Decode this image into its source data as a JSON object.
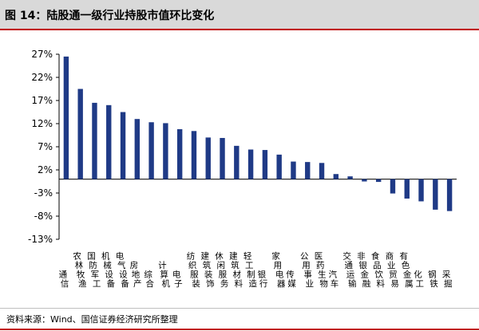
{
  "header": {
    "title": "图 14：陆股通一级行业持股市值环比变化"
  },
  "footer": {
    "source": "资料来源：Wind、国信证券经济研究所整理"
  },
  "colors": {
    "bar": "#1f3a86",
    "accent_red": "#c00000",
    "header_bg": "#d9d9d9"
  },
  "chart_data": {
    "type": "bar",
    "title": "",
    "xlabel": "",
    "ylabel": "",
    "ylim": [
      -13,
      27
    ],
    "yticks": [
      -13,
      -8,
      -3,
      2,
      7,
      12,
      17,
      22,
      27
    ],
    "ytick_labels": [
      "-13%",
      "-8%",
      "-3%",
      "2%",
      "7%",
      "12%",
      "17%",
      "22%",
      "27%"
    ],
    "grid": false,
    "categories": [
      "通信",
      "农林牧渔",
      "国防军工",
      "机械设备",
      "电气设备",
      "房地产",
      "综合",
      "计算机",
      "电子",
      "纺织服装",
      "建筑装饰",
      "休闲服务",
      "建筑材料",
      "轻工制造",
      "银行",
      "家用电器",
      "传媒",
      "公用事业",
      "医药生物",
      "汽车",
      "交通运输",
      "非银金融",
      "食品饮料",
      "商业贸易",
      "有色金属",
      "化工",
      "钢铁",
      "采掘"
    ],
    "values": [
      26.5,
      19.5,
      16.5,
      16.0,
      14.5,
      13.0,
      12.3,
      12.1,
      10.8,
      10.4,
      9.0,
      8.9,
      7.2,
      6.4,
      6.3,
      5.3,
      3.8,
      3.7,
      3.5,
      1.1,
      0.6,
      -0.5,
      -0.6,
      -3.1,
      -4.2,
      -4.8,
      -6.6,
      -6.9
    ],
    "series": [
      {
        "values_ref": "values"
      }
    ]
  }
}
